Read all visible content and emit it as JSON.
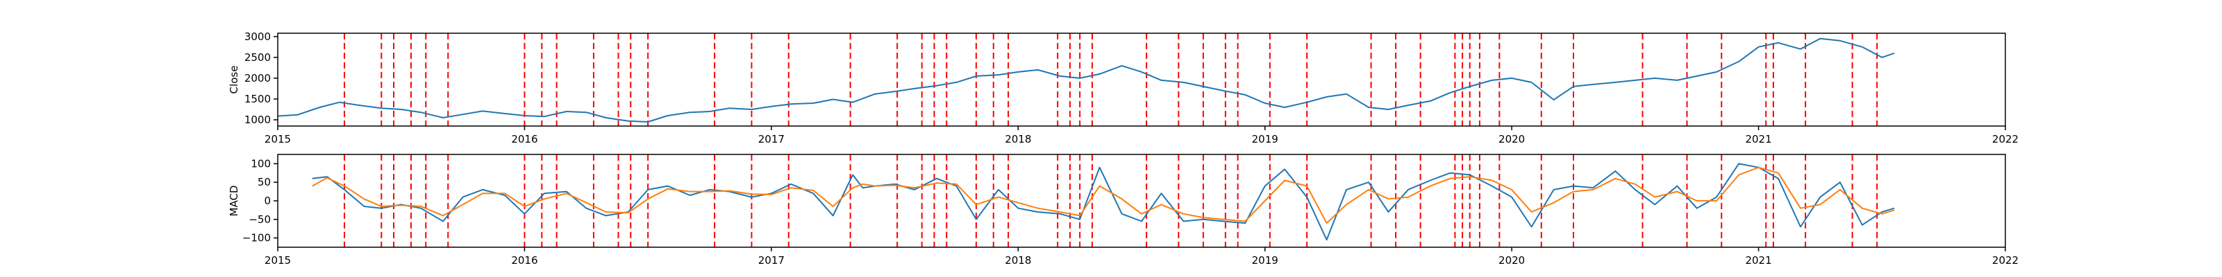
{
  "colors": {
    "close": "#1f77b4",
    "macd": "#1f77b4",
    "signal": "#ff7f0e",
    "vline": "#ff0000",
    "axes": "#000000"
  },
  "chart_data": [
    {
      "type": "line",
      "ylabel": "Close",
      "xlim": [
        2015.0,
        2022.0
      ],
      "ylim": [
        850,
        3080
      ],
      "x_ticks": [
        2015,
        2016,
        2017,
        2018,
        2019,
        2020,
        2021,
        2022
      ],
      "x_tick_labels": [
        "2015",
        "2016",
        "2017",
        "2018",
        "2019",
        "2020",
        "2021",
        "2022"
      ],
      "y_ticks": [
        1000,
        1500,
        2000,
        2500,
        3000
      ],
      "y_tick_labels": [
        "1000",
        "1500",
        "2000",
        "2500",
        "3000"
      ],
      "grid": false,
      "series": [
        {
          "key": "close",
          "x": [
            2015.0,
            2015.08,
            2015.17,
            2015.25,
            2015.33,
            2015.42,
            2015.5,
            2015.58,
            2015.67,
            2015.75,
            2015.83,
            2015.92,
            2016.0,
            2016.08,
            2016.17,
            2016.25,
            2016.33,
            2016.42,
            2016.5,
            2016.58,
            2016.67,
            2016.75,
            2016.83,
            2016.92,
            2017.0,
            2017.08,
            2017.17,
            2017.25,
            2017.33,
            2017.42,
            2017.5,
            2017.58,
            2017.67,
            2017.75,
            2017.83,
            2017.92,
            2018.0,
            2018.08,
            2018.17,
            2018.25,
            2018.33,
            2018.42,
            2018.5,
            2018.58,
            2018.67,
            2018.75,
            2018.83,
            2018.92,
            2019.0,
            2019.08,
            2019.17,
            2019.25,
            2019.33,
            2019.42,
            2019.5,
            2019.58,
            2019.67,
            2019.75,
            2019.83,
            2019.92,
            2020.0,
            2020.08,
            2020.17,
            2020.25,
            2020.33,
            2020.42,
            2020.5,
            2020.58,
            2020.67,
            2020.75,
            2020.83,
            2020.92,
            2021.0,
            2021.08,
            2021.17,
            2021.25,
            2021.33,
            2021.42,
            2021.5,
            2021.55
          ],
          "values": [
            1090,
            1120,
            1300,
            1420,
            1350,
            1280,
            1250,
            1180,
            1050,
            1130,
            1210,
            1150,
            1100,
            1080,
            1200,
            1180,
            1050,
            970,
            950,
            1100,
            1180,
            1200,
            1280,
            1250,
            1320,
            1380,
            1400,
            1490,
            1420,
            1620,
            1680,
            1750,
            1820,
            1900,
            2050,
            2080,
            2150,
            2200,
            2050,
            2000,
            2100,
            2300,
            2150,
            1950,
            1900,
            1800,
            1700,
            1600,
            1400,
            1300,
            1420,
            1550,
            1620,
            1300,
            1250,
            1350,
            1450,
            1650,
            1800,
            1950,
            2000,
            1900,
            1480,
            1800,
            1850,
            1900,
            1950,
            2000,
            1950,
            2050,
            2150,
            2400,
            2750,
            2850,
            2700,
            2950,
            2900,
            2750,
            2500,
            2600
          ]
        }
      ]
    },
    {
      "type": "line",
      "ylabel": "MACD",
      "xlim": [
        2015.0,
        2022.0
      ],
      "ylim": [
        -125,
        125
      ],
      "x_ticks": [
        2015,
        2016,
        2017,
        2018,
        2019,
        2020,
        2021,
        2022
      ],
      "x_tick_labels": [
        "2015",
        "2016",
        "2017",
        "2018",
        "2019",
        "2020",
        "2021",
        "2022"
      ],
      "y_ticks": [
        100,
        50,
        0,
        -50,
        -100
      ],
      "y_tick_labels": [
        "100",
        "50",
        "0",
        "−50",
        "−100"
      ],
      "grid": false,
      "series": [
        {
          "key": "macd",
          "x": [
            2015.14,
            2015.2,
            2015.27,
            2015.35,
            2015.42,
            2015.5,
            2015.58,
            2015.67,
            2015.75,
            2015.83,
            2015.92,
            2016.0,
            2016.08,
            2016.17,
            2016.25,
            2016.33,
            2016.42,
            2016.5,
            2016.58,
            2016.67,
            2016.75,
            2016.83,
            2016.92,
            2017.0,
            2017.08,
            2017.17,
            2017.25,
            2017.33,
            2017.37,
            2017.42,
            2017.5,
            2017.58,
            2017.67,
            2017.75,
            2017.83,
            2017.92,
            2018.0,
            2018.08,
            2018.17,
            2018.25,
            2018.33,
            2018.42,
            2018.5,
            2018.58,
            2018.67,
            2018.75,
            2018.83,
            2018.92,
            2019.0,
            2019.08,
            2019.17,
            2019.25,
            2019.33,
            2019.42,
            2019.5,
            2019.58,
            2019.67,
            2019.75,
            2019.83,
            2019.92,
            2020.0,
            2020.08,
            2020.17,
            2020.25,
            2020.33,
            2020.42,
            2020.5,
            2020.58,
            2020.67,
            2020.75,
            2020.83,
            2020.92,
            2021.0,
            2021.08,
            2021.17,
            2021.25,
            2021.33,
            2021.42,
            2021.5,
            2021.55
          ],
          "values": [
            60,
            65,
            30,
            -15,
            -20,
            -10,
            -20,
            -55,
            10,
            30,
            15,
            -35,
            20,
            25,
            -20,
            -40,
            -30,
            30,
            40,
            15,
            30,
            25,
            10,
            20,
            45,
            20,
            -40,
            70,
            35,
            40,
            45,
            30,
            60,
            40,
            -50,
            30,
            -20,
            -30,
            -35,
            -50,
            90,
            -35,
            -55,
            20,
            -55,
            -50,
            -55,
            -60,
            40,
            85,
            10,
            -105,
            30,
            50,
            -30,
            30,
            55,
            75,
            70,
            40,
            10,
            -70,
            30,
            40,
            35,
            80,
            30,
            -10,
            40,
            -20,
            10,
            100,
            90,
            60,
            -70,
            10,
            50,
            -65,
            -30,
            -20
          ]
        },
        {
          "key": "signal",
          "x": [
            2015.14,
            2015.2,
            2015.27,
            2015.35,
            2015.42,
            2015.5,
            2015.58,
            2015.67,
            2015.75,
            2015.83,
            2015.92,
            2016.0,
            2016.08,
            2016.17,
            2016.25,
            2016.33,
            2016.42,
            2016.5,
            2016.58,
            2016.67,
            2016.75,
            2016.83,
            2016.92,
            2017.0,
            2017.08,
            2017.17,
            2017.25,
            2017.33,
            2017.37,
            2017.42,
            2017.5,
            2017.58,
            2017.67,
            2017.75,
            2017.83,
            2017.92,
            2018.0,
            2018.08,
            2018.17,
            2018.25,
            2018.33,
            2018.42,
            2018.5,
            2018.58,
            2018.67,
            2018.75,
            2018.83,
            2018.92,
            2019.0,
            2019.08,
            2019.17,
            2019.25,
            2019.33,
            2019.42,
            2019.5,
            2019.58,
            2019.67,
            2019.75,
            2019.83,
            2019.92,
            2020.0,
            2020.08,
            2020.17,
            2020.25,
            2020.33,
            2020.42,
            2020.5,
            2020.58,
            2020.67,
            2020.75,
            2020.83,
            2020.92,
            2021.0,
            2021.08,
            2021.17,
            2021.25,
            2021.33,
            2021.42,
            2021.5,
            2021.55
          ],
          "values": [
            40,
            62,
            40,
            5,
            -15,
            -12,
            -15,
            -40,
            -10,
            20,
            20,
            -15,
            5,
            20,
            -5,
            -30,
            -32,
            5,
            32,
            25,
            25,
            27,
            18,
            17,
            35,
            28,
            -15,
            35,
            45,
            40,
            42,
            35,
            48,
            45,
            -10,
            10,
            -5,
            -20,
            -30,
            -40,
            40,
            5,
            -35,
            -10,
            -35,
            -45,
            -50,
            -55,
            0,
            55,
            40,
            -60,
            -10,
            30,
            5,
            10,
            40,
            60,
            65,
            55,
            30,
            -30,
            -5,
            25,
            30,
            60,
            45,
            10,
            25,
            0,
            0,
            70,
            90,
            75,
            -20,
            -10,
            30,
            -20,
            -35,
            -25
          ]
        }
      ],
      "horizontal_lines": []
    }
  ],
  "signal_dates": [
    2015.27,
    2015.42,
    2015.47,
    2015.54,
    2015.6,
    2015.69,
    2016.0,
    2016.07,
    2016.13,
    2016.28,
    2016.38,
    2016.43,
    2016.5,
    2016.77,
    2016.92,
    2017.07,
    2017.32,
    2017.51,
    2017.61,
    2017.66,
    2017.71,
    2017.83,
    2017.9,
    2017.96,
    2018.16,
    2018.21,
    2018.25,
    2018.3,
    2018.52,
    2018.65,
    2018.75,
    2018.84,
    2018.89,
    2019.02,
    2019.17,
    2019.43,
    2019.53,
    2019.63,
    2019.77,
    2019.8,
    2019.83,
    2019.87,
    2019.95,
    2020.12,
    2020.25,
    2020.53,
    2020.71,
    2020.85,
    2021.03,
    2021.06,
    2021.19,
    2021.38,
    2021.48
  ]
}
